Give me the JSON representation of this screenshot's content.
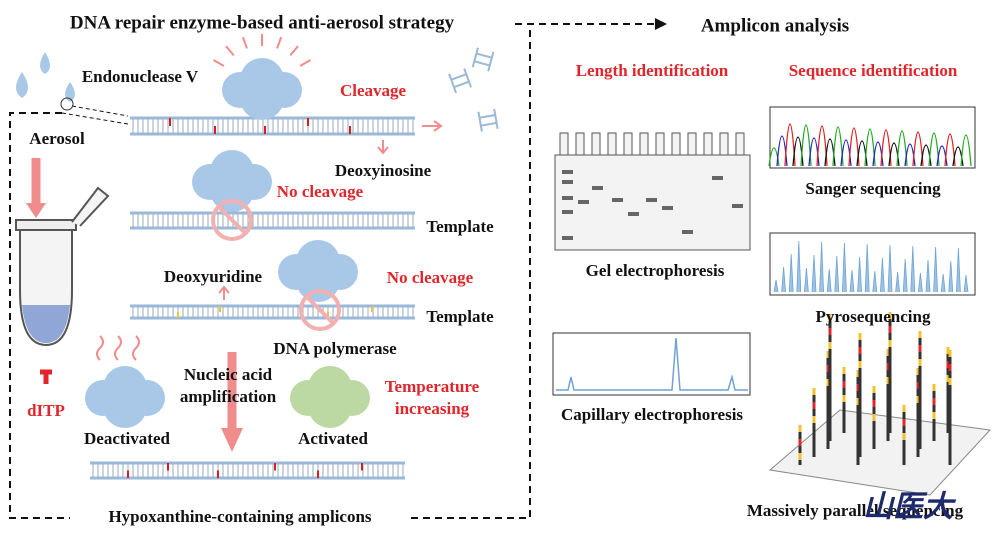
{
  "header": {
    "title": "DNA repair enzyme-based anti-aerosol strategy",
    "right_title": "Amplicon analysis"
  },
  "left": {
    "enzyme": "Endonuclease V",
    "cleavage": "Cleavage",
    "aerosol": "Aerosol",
    "deoxyinosine": "Deoxyinosine",
    "no_cleavage_1": "No cleavage",
    "template_1": "Template",
    "deoxyuridine": "Deoxyuridine",
    "no_cleavage_2": "No cleavage",
    "template_2": "Template",
    "dna_polymerase": "DNA polymerase",
    "amplification": [
      "Nucleic acid",
      "amplification"
    ],
    "temperature": [
      "Temperature",
      "increasing"
    ],
    "ditp": "dITP",
    "deactivated": "Deactivated",
    "activated": "Activated",
    "amplicons": "Hypoxanthine-containing amplicons"
  },
  "right": {
    "length_identification": "Length identification",
    "sequence_identification": "Sequence identification",
    "gel": "Gel electrophoresis",
    "sanger": "Sanger sequencing",
    "pyro": "Pyrosequencing",
    "capillary": "Capillary electrophoresis",
    "massively": "Massively parallel sequencing"
  },
  "watermark": "山医大"
}
